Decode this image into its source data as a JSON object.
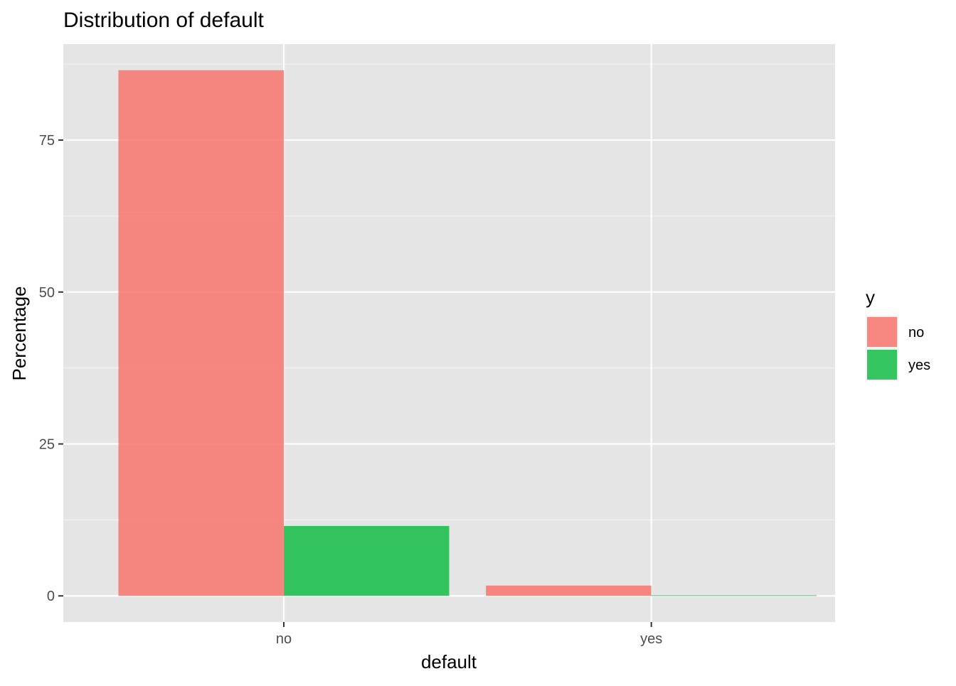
{
  "chart_data": {
    "type": "bar",
    "title": "Distribution of default",
    "xlabel": "default",
    "ylabel": "Percentage",
    "categories": [
      "no",
      "yes"
    ],
    "series": [
      {
        "name": "no",
        "color": "#F8766D",
        "values": [
          86.5,
          1.7
        ]
      },
      {
        "name": "yes",
        "color": "#00BA38",
        "values": [
          11.5,
          0.1
        ]
      }
    ],
    "yticks": [
      0,
      25,
      50,
      75
    ],
    "ylim": [
      -4.3,
      90.8
    ],
    "grid": true,
    "panel_background": "#E5E5E5",
    "legend": {
      "title": "y",
      "position": "right",
      "items": [
        "no",
        "yes"
      ]
    }
  }
}
